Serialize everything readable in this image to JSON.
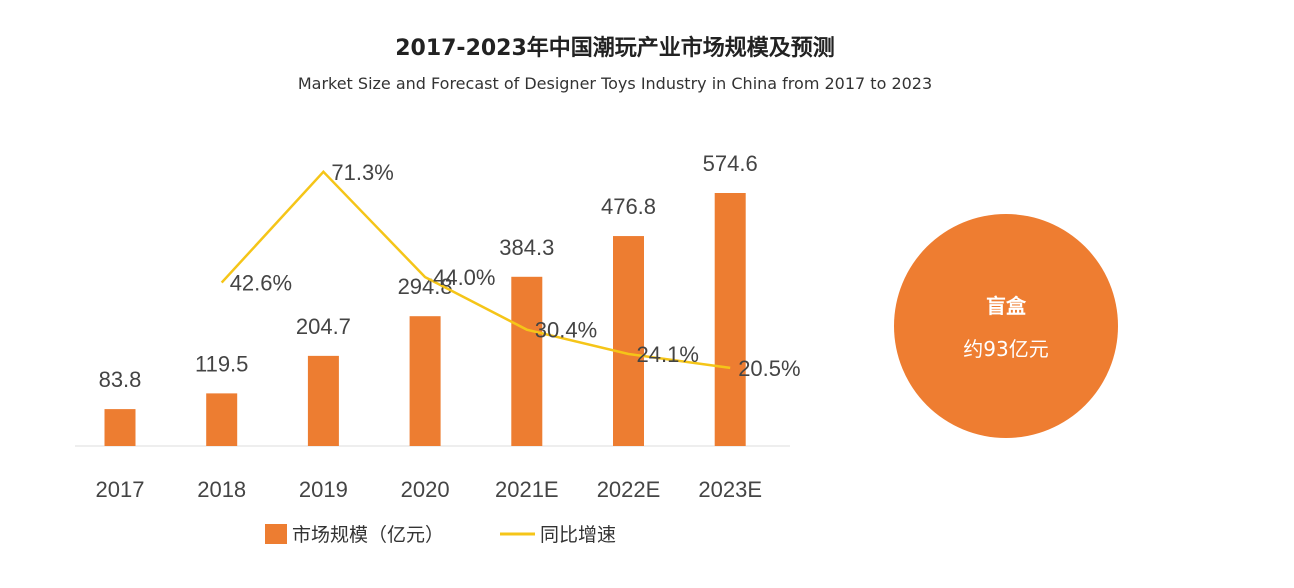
{
  "title": "2017-2023年中国潮玩产业市场规模及预测",
  "subtitle": "Market Size and Forecast of Designer Toys Industry in China from 2017 to 2023",
  "callout": {
    "label": "盲盒",
    "value": "约93亿元",
    "color": "#ee7d31"
  },
  "chart_data": {
    "type": "bar+line",
    "categories": [
      "2017",
      "2018",
      "2019",
      "2020",
      "2021E",
      "2022E",
      "2023E"
    ],
    "series": [
      {
        "name": "市场规模（亿元）",
        "type": "bar",
        "color": "#ed7d31",
        "values": [
          83.8,
          119.5,
          204.7,
          294.8,
          384.3,
          476.8,
          574.6
        ],
        "labels": [
          "83.8",
          "119.5",
          "204.7",
          "294.8",
          "384.3",
          "476.8",
          "574.6"
        ]
      },
      {
        "name": "同比增速",
        "type": "line",
        "color": "#f5c518",
        "values": [
          null,
          42.6,
          71.3,
          44.0,
          30.4,
          24.1,
          20.5
        ],
        "labels": [
          "",
          "42.6%",
          "71.3%",
          "44.0%",
          "30.4%",
          "24.1%",
          "20.5%"
        ]
      }
    ],
    "legend": "bottom",
    "grid": false
  }
}
